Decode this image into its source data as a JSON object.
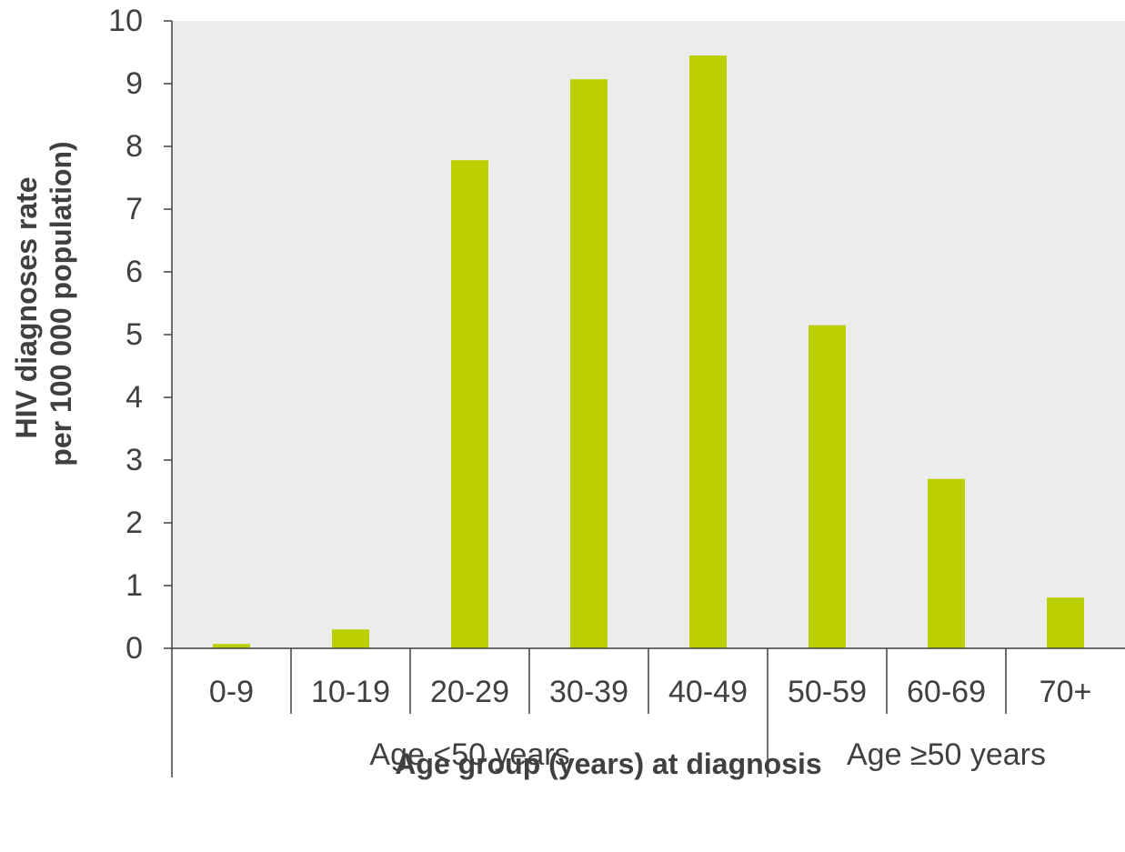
{
  "chart_data": {
    "type": "bar",
    "title": "",
    "xlabel": "Age group (years) at diagnosis",
    "ylabel_lines": [
      "HIV diagnoses rate",
      "per 100 000 population)"
    ],
    "categories": [
      "0-9",
      "10-19",
      "20-29",
      "30-39",
      "40-49",
      "50-59",
      "60-69",
      "70+"
    ],
    "values": [
      0.07,
      0.3,
      7.78,
      9.07,
      9.45,
      5.15,
      2.7,
      0.81
    ],
    "groups": [
      {
        "label": "Age <50 years",
        "from": 0,
        "to": 4
      },
      {
        "label": "Age ≥50 years",
        "from": 5,
        "to": 7
      }
    ],
    "ylim": [
      0,
      10
    ],
    "yticks": [
      0,
      1,
      2,
      3,
      4,
      5,
      6,
      7,
      8,
      9,
      10
    ],
    "grid": false,
    "colors": {
      "bar": "#bccf00",
      "plot_background": "#ececec",
      "axis": "#404040"
    }
  }
}
